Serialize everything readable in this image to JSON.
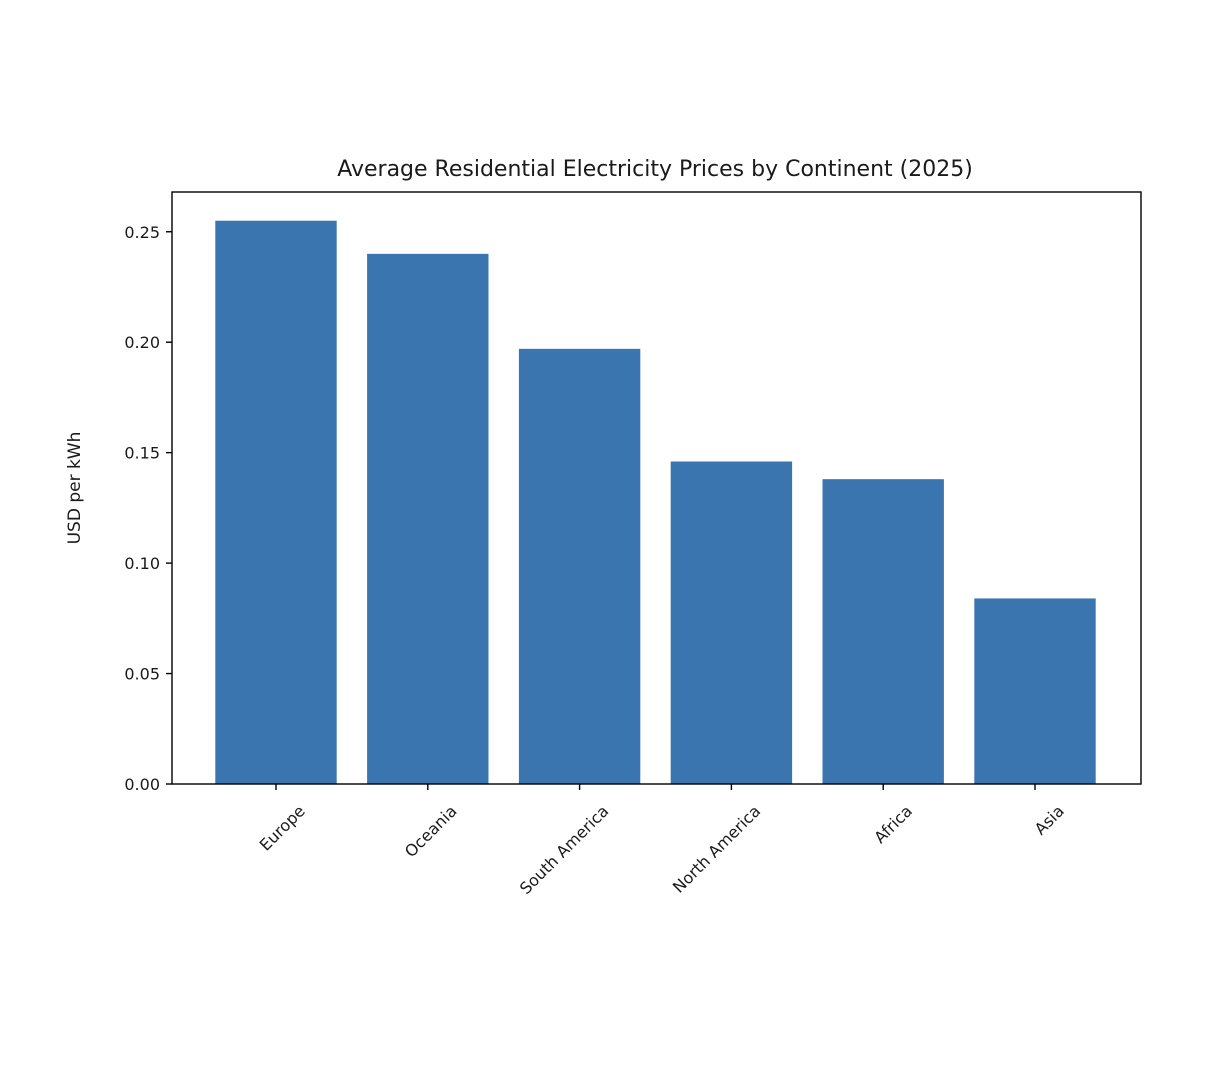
{
  "chart_data": {
    "type": "bar",
    "title": "Average Residential Electricity Prices by Continent (2025)",
    "xlabel": "",
    "ylabel": "USD per kWh",
    "categories": [
      "Europe",
      "Oceania",
      "South America",
      "North America",
      "Africa",
      "Asia"
    ],
    "values": [
      0.255,
      0.24,
      0.197,
      0.146,
      0.138,
      0.084
    ],
    "ylim": [
      0,
      0.268
    ],
    "yticks": [
      0.0,
      0.05,
      0.1,
      0.15,
      0.2,
      0.25
    ],
    "ytick_labels": [
      "0.00",
      "0.05",
      "0.10",
      "0.15",
      "0.20",
      "0.25"
    ],
    "bar_color": "#3b75af",
    "grid": false,
    "legend": "none"
  }
}
